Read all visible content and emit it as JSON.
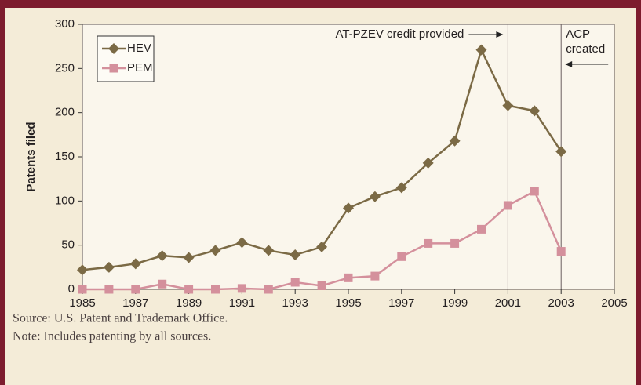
{
  "chart_data": {
    "type": "line",
    "y_label": "Patents filed",
    "x": [
      1985,
      1986,
      1987,
      1988,
      1989,
      1990,
      1991,
      1992,
      1993,
      1994,
      1995,
      1996,
      1997,
      1998,
      1999,
      2000,
      2001,
      2002,
      2003
    ],
    "series": [
      {
        "name": "HEV",
        "color": "#7b6a45",
        "marker": "diamond",
        "values": [
          22,
          25,
          29,
          38,
          36,
          44,
          53,
          44,
          39,
          48,
          92,
          105,
          115,
          143,
          168,
          271,
          208,
          202,
          156
        ]
      },
      {
        "name": "PEM",
        "color": "#d4909c",
        "marker": "square",
        "values": [
          0,
          0,
          0,
          6,
          0,
          0,
          1,
          0,
          8,
          4,
          13,
          15,
          37,
          52,
          52,
          68,
          95,
          111,
          43
        ]
      }
    ],
    "xlim": [
      1985,
      2005
    ],
    "xticks": [
      1985,
      1987,
      1989,
      1991,
      1993,
      1995,
      1997,
      1999,
      2001,
      2003,
      2005
    ],
    "ylim": [
      0,
      300
    ],
    "yticks": [
      0,
      50,
      100,
      150,
      200,
      250,
      300
    ],
    "legend": "upper left",
    "annotations": [
      {
        "lines": [
          "AT-PZEV credit provided"
        ],
        "x": 2001,
        "arrow": "right"
      },
      {
        "lines": [
          "ACP",
          "created"
        ],
        "x": 2003,
        "arrow": "left"
      }
    ],
    "footnotes": [
      "Source: U.S. Patent and Trademark Office.",
      "Note: Includes patenting by all sources."
    ]
  }
}
